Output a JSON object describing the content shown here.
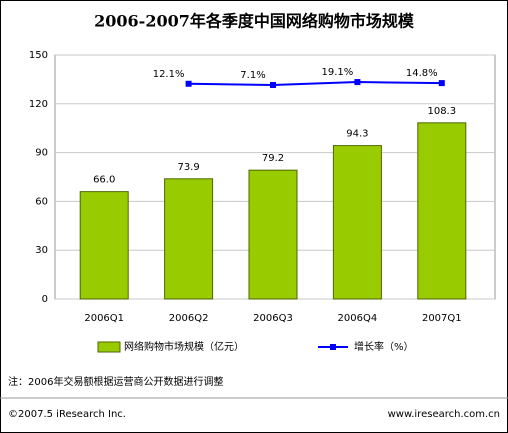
{
  "chart_data": {
    "type": "bar",
    "title": "2006-2007年各季度中国网络购物市场规模",
    "categories": [
      "2006Q1",
      "2006Q2",
      "2006Q3",
      "2006Q4",
      "2007Q1"
    ],
    "series": [
      {
        "name": "网络购物市场规模（亿元）",
        "type": "bar",
        "color": "#99cc00",
        "values": [
          66.0,
          73.9,
          79.2,
          94.3,
          108.3
        ],
        "value_labels": [
          "66.0",
          "73.9",
          "79.2",
          "94.3",
          "108.3"
        ]
      },
      {
        "name": "增长率（%）",
        "type": "line",
        "axis": "y2",
        "color": "#0000ff",
        "values": [
          null,
          12.1,
          7.1,
          19.1,
          14.8
        ],
        "value_labels": [
          null,
          "12.1%",
          "7.1%",
          "19.1%",
          "14.8%"
        ]
      }
    ],
    "ylim": [
      0,
      150
    ],
    "yticks": [
      0,
      30,
      60,
      90,
      120,
      150
    ],
    "y2lim": [
      -870,
      130
    ],
    "grid": true,
    "note": "注：2006年交易额根据运营商公开数据进行调整",
    "copyright": "©2007.5 iResearch Inc.",
    "website": "www.iresearch.com.cn"
  }
}
